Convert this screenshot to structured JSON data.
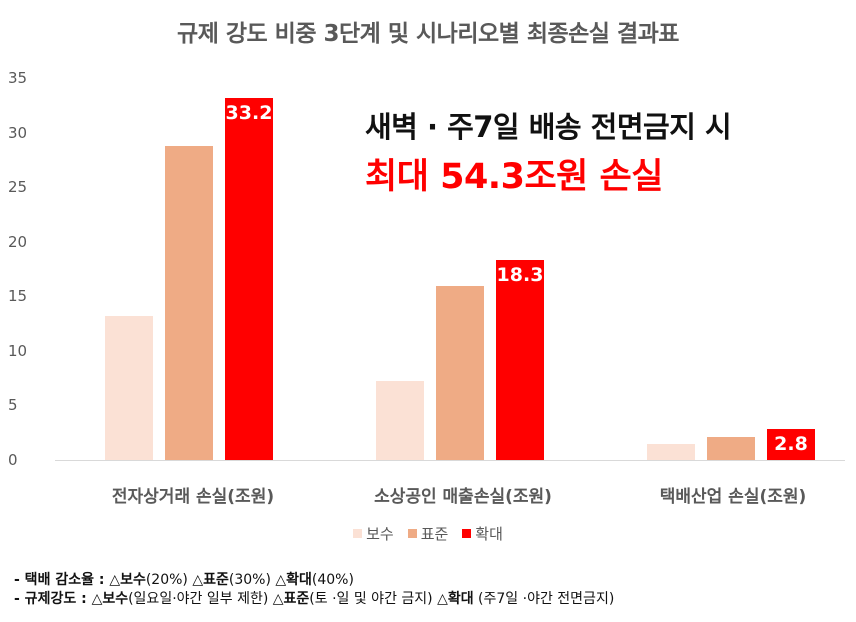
{
  "title": "규제 강도 비중 3단계 및 시나리오별 최종손실 결과표",
  "callout": {
    "line1": "새벽 · 주7일 배송 전면금지 시",
    "line2": "최대 54.3조원 손실"
  },
  "legend": [
    {
      "label": "보수",
      "color": "#fbe1d5"
    },
    {
      "label": "표준",
      "color": "#efab85"
    },
    {
      "label": "확대",
      "color": "#ff0000"
    }
  ],
  "notes": {
    "line1_prefix": "- 택배 감소율 : ",
    "line1": [
      {
        "bold": "△보수",
        "text": "(20%) "
      },
      {
        "bold": "△표준",
        "text": "(30%) "
      },
      {
        "bold": "△확대",
        "text": "(40%)"
      }
    ],
    "line2_prefix": "- 규제강도 : ",
    "line2": [
      {
        "bold": "△보수",
        "text": "(일요일·야간 일부 제한) "
      },
      {
        "bold": "△표준",
        "text": "(토 ·일 및 야간 금지) "
      },
      {
        "bold": "△확대",
        "text": " (주7일 ·야간 전면금지)"
      }
    ]
  },
  "chart_data": {
    "type": "bar",
    "title": "규제 강도 비중 3단계 및 시나리오별 최종손실 결과표",
    "categories": [
      "전자상거래 손실(조원)",
      "소상공인 매출손실(조원)",
      "택배산업 손실(조원)"
    ],
    "series": [
      {
        "name": "보수",
        "color": "#fbe1d5",
        "values": [
          13.2,
          7.2,
          1.5
        ],
        "labeled": [
          false,
          false,
          false
        ],
        "values_estimated": true
      },
      {
        "name": "표준",
        "color": "#efab85",
        "values": [
          28.8,
          15.9,
          2.1
        ],
        "labeled": [
          false,
          false,
          false
        ],
        "values_estimated": true
      },
      {
        "name": "확대",
        "color": "#ff0000",
        "values": [
          33.2,
          18.3,
          2.8
        ],
        "labeled": [
          true,
          true,
          true
        ]
      }
    ],
    "data_labels": {
      "확대": [
        "33.2",
        "18.3",
        "2.8"
      ]
    },
    "xlabel": "",
    "ylabel": "",
    "ylim": [
      0,
      35
    ],
    "yticks": [
      0,
      5,
      10,
      15,
      20,
      25,
      30,
      35
    ],
    "grid": false,
    "legend_position": "bottom",
    "annotations": [
      "새벽 · 주7일 배송 전면금지 시",
      "최대 54.3조원 손실"
    ]
  }
}
